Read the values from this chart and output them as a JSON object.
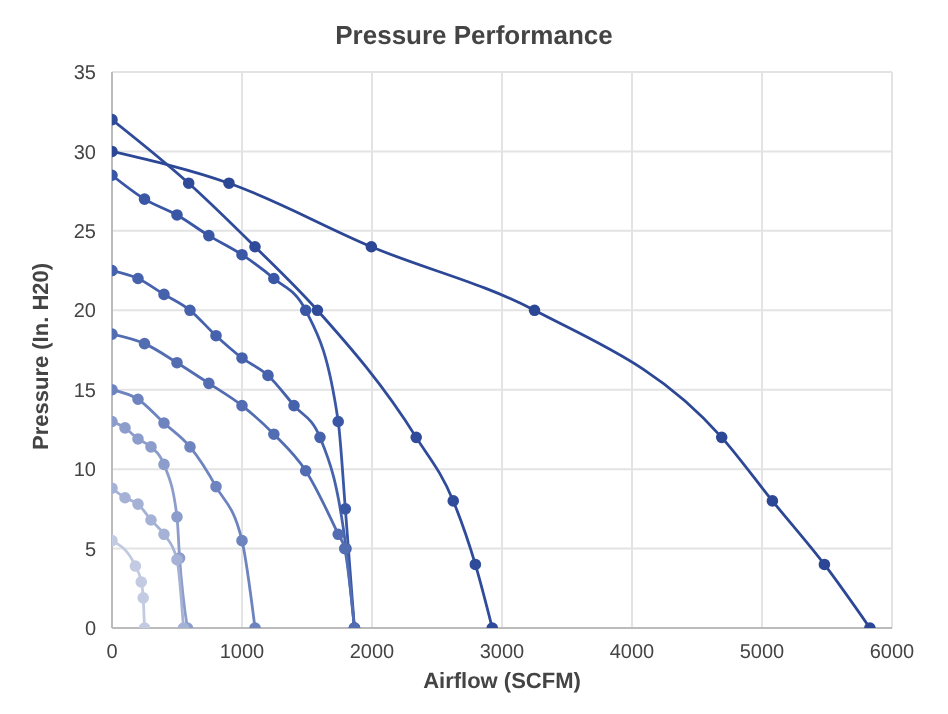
{
  "chart_data": {
    "type": "line",
    "title": "Pressure Performance",
    "xlabel": "Airflow (SCFM)",
    "ylabel": "Pressure (In. H20)",
    "xlim": [
      0,
      6000
    ],
    "xticks": [
      0,
      1000,
      2000,
      3000,
      4000,
      5000,
      6000
    ],
    "ylim": [
      0,
      35
    ],
    "yticks": [
      0,
      5,
      10,
      15,
      20,
      25,
      30,
      35
    ],
    "grid": true,
    "marker": "circle",
    "line_style": "solid",
    "series": [
      {
        "color": "#2b4795",
        "x": [
          0,
          900,
          1995,
          3250,
          4690,
          5080,
          5480,
          5830
        ],
        "values": [
          30,
          28,
          24,
          20,
          12,
          8,
          4,
          0
        ]
      },
      {
        "color": "#2f4b9a",
        "x": [
          0,
          590,
          1100,
          1580,
          2340,
          2625,
          2795,
          2925
        ],
        "values": [
          32,
          28,
          24,
          20,
          12,
          8,
          4,
          0
        ]
      },
      {
        "color": "#3a57a6",
        "x": [
          0,
          250,
          500,
          745,
          1000,
          1245,
          1490,
          1740,
          1795,
          1865
        ],
        "values": [
          28.5,
          27,
          26,
          24.7,
          23.5,
          22,
          20,
          13,
          7.5,
          0
        ]
      },
      {
        "color": "#4762ad",
        "x": [
          0,
          200,
          400,
          600,
          800,
          1000,
          1200,
          1400,
          1600,
          1800,
          1865
        ],
        "values": [
          22.5,
          22,
          21,
          20,
          18.4,
          17,
          15.9,
          14,
          12,
          5,
          0
        ]
      },
      {
        "color": "#536db2",
        "x": [
          0,
          250,
          500,
          745,
          1000,
          1245,
          1490,
          1740,
          1790,
          1865
        ],
        "values": [
          18.5,
          17.9,
          16.7,
          15.4,
          14,
          12.2,
          9.9,
          5.9,
          5,
          0
        ]
      },
      {
        "color": "#6e84bf",
        "x": [
          0,
          200,
          400,
          600,
          800,
          1000,
          1100
        ],
        "values": [
          15,
          14.4,
          12.9,
          11.4,
          8.9,
          5.5,
          0
        ]
      },
      {
        "color": "#8c9dcb",
        "x": [
          0,
          100,
          200,
          300,
          400,
          500,
          520,
          580
        ],
        "values": [
          13,
          12.6,
          11.9,
          11.4,
          10.3,
          7,
          4.4,
          0
        ]
      },
      {
        "color": "#a5b2d6",
        "x": [
          0,
          100,
          200,
          300,
          400,
          500,
          550
        ],
        "values": [
          8.8,
          8.2,
          7.8,
          6.8,
          5.9,
          4.3,
          0
        ]
      },
      {
        "color": "#c3cbe3",
        "x": [
          0,
          180,
          225,
          240,
          250
        ],
        "values": [
          5.5,
          3.9,
          2.9,
          1.9,
          0
        ]
      }
    ]
  }
}
